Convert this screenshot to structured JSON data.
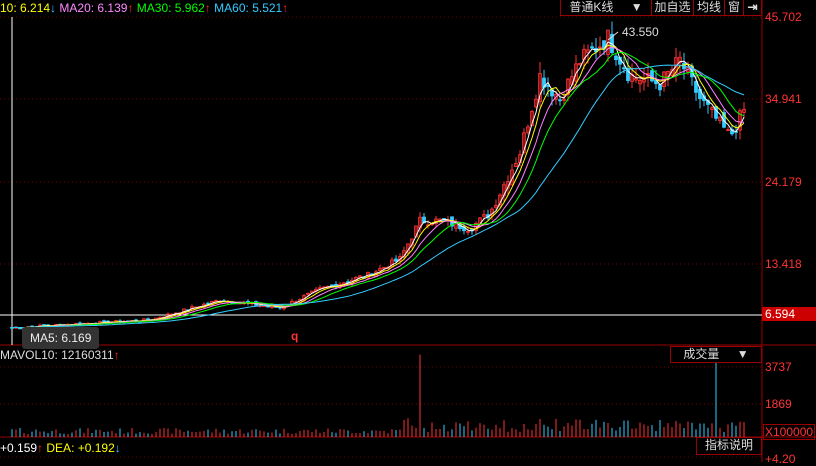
{
  "legend": {
    "ma10": "10: 6.214",
    "ma10_arrow": "↓",
    "ma20": "MA20: 6.139",
    "ma20_arrow": "↑",
    "ma30": "MA30: 5.962",
    "ma30_arrow": "↑",
    "ma60": "MA60: 5.521",
    "ma60_arrow": "↑"
  },
  "toolbar": {
    "kline_type": "普通K线",
    "add_watch": "加自选",
    "ma_lines": "均线",
    "window": "窗",
    "exit_icon": "exit-arrow-icon"
  },
  "price_axis": [
    "45.702",
    "34.941",
    "24.179",
    "13.418"
  ],
  "current_price": "6.594",
  "high_label": "43.550",
  "tooltip": "MA5: 6.169",
  "marker": "q",
  "volume": {
    "label": "MAVOL10: 12160311",
    "arrow": "↑",
    "indicator": "成交量",
    "axis": [
      "3737",
      "1869"
    ],
    "unit": "X100000"
  },
  "macd": {
    "diff": "+0.159",
    "diff_arrow": "↑",
    "dea": "DEA: +0.192",
    "dea_arrow": "↓",
    "help": "指标说明",
    "axis_top": "+4.20"
  },
  "colors": {
    "up": "#ff3333",
    "down": "#33ccff",
    "ma5": "#ffffff",
    "ma10": "#ffff00",
    "ma20": "#ff80ff",
    "ma30": "#00ff00",
    "ma60": "#33ccff"
  }
}
